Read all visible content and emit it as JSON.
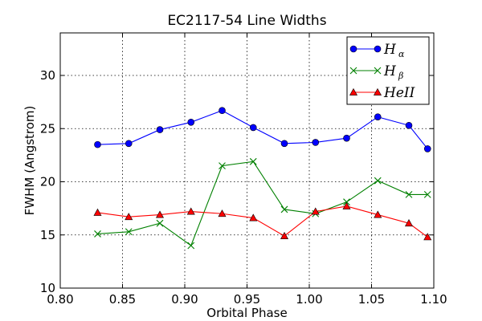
{
  "chart_data": {
    "type": "line",
    "title": "EC2117-54 Line Widths",
    "xlabel": "Orbital Phase",
    "ylabel": "FWHM (Angstrom)",
    "xlim": [
      0.8,
      1.1
    ],
    "ylim": [
      10,
      34
    ],
    "x_ticks": [
      "0.80",
      "0.85",
      "0.90",
      "0.95",
      "1.00",
      "1.05",
      "1.10"
    ],
    "y_ticks": [
      "10",
      "15",
      "20",
      "25",
      "30"
    ],
    "grid": true,
    "legend_position": "top-right",
    "series": [
      {
        "name": "H",
        "subscript": "α",
        "color": "#0000ff",
        "marker": "circle",
        "x": [
          0.83,
          0.855,
          0.88,
          0.905,
          0.93,
          0.955,
          0.98,
          1.005,
          1.03,
          1.055,
          1.08,
          1.095
        ],
        "y": [
          23.5,
          23.6,
          24.9,
          25.6,
          26.7,
          25.1,
          23.6,
          23.7,
          24.1,
          26.1,
          25.3,
          23.1
        ]
      },
      {
        "name": "H",
        "subscript": "β",
        "color": "#008000",
        "marker": "x",
        "x": [
          0.83,
          0.855,
          0.88,
          0.905,
          0.93,
          0.955,
          0.98,
          1.005,
          1.03,
          1.055,
          1.08,
          1.095
        ],
        "y": [
          15.1,
          15.3,
          16.1,
          14.0,
          21.5,
          21.9,
          17.4,
          17.0,
          18.1,
          20.1,
          18.8,
          18.8
        ]
      },
      {
        "name": "HeII",
        "subscript": "",
        "color": "#ff0000",
        "marker": "triangle",
        "x": [
          0.83,
          0.855,
          0.88,
          0.905,
          0.93,
          0.955,
          0.98,
          1.005,
          1.03,
          1.055,
          1.08,
          1.095
        ],
        "y": [
          17.1,
          16.7,
          16.9,
          17.2,
          17.0,
          16.6,
          14.9,
          17.2,
          17.7,
          16.9,
          16.1,
          14.8
        ]
      }
    ]
  }
}
